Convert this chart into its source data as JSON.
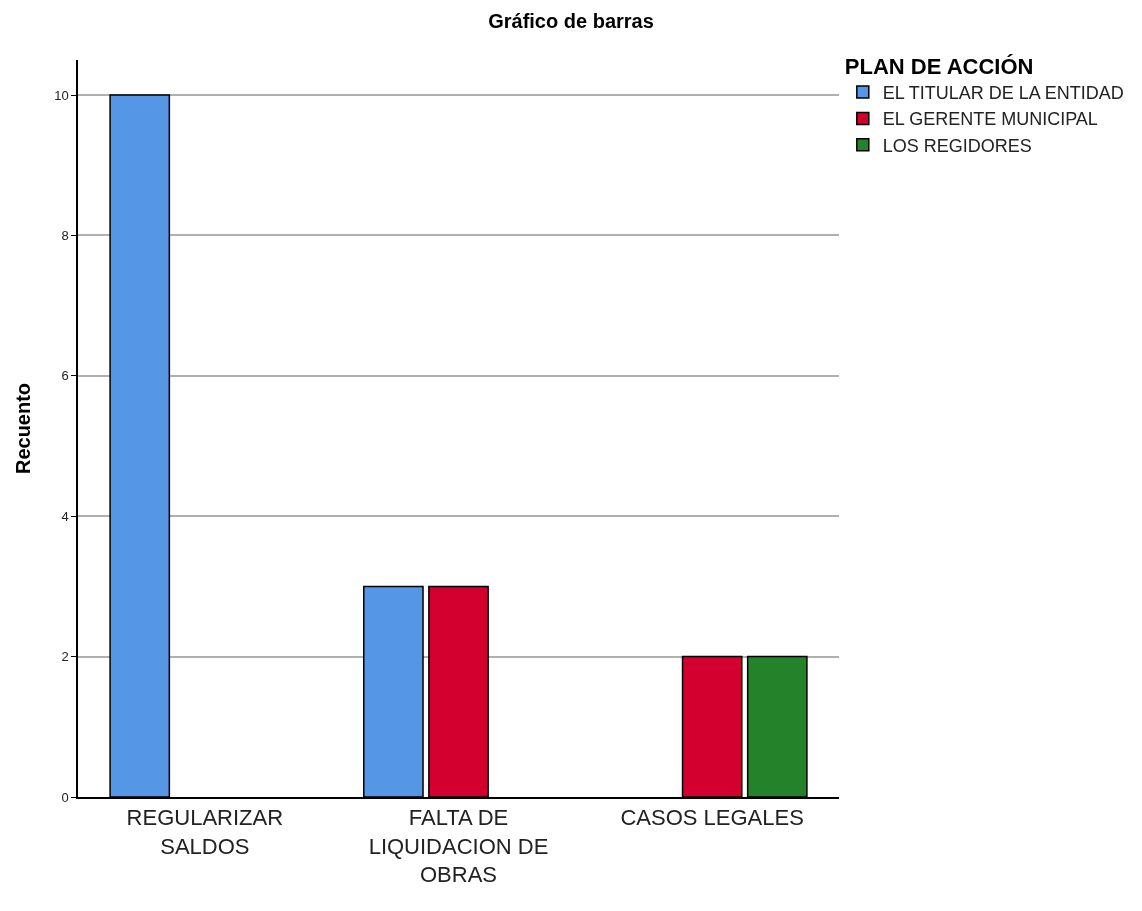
{
  "chart_data": {
    "type": "bar",
    "title": "Gráfico de barras",
    "ylabel": "Recuento",
    "legend_title": "PLAN DE ACCIÓN",
    "categories": [
      "REGULARIZAR SALDOS",
      "FALTA DE LIQUIDACION DE OBRAS",
      "CASOS LEGALES"
    ],
    "series": [
      {
        "name": "EL TITULAR DE LA ENTIDAD",
        "color": "#5596e6",
        "values": [
          10,
          3,
          null
        ]
      },
      {
        "name": "EL GERENTE MUNICIPAL",
        "color": "#d3002f",
        "values": [
          null,
          3,
          2
        ]
      },
      {
        "name": "LOS REGIDORES",
        "color": "#24832a",
        "values": [
          null,
          null,
          2
        ]
      }
    ],
    "ylim": [
      0,
      10.5
    ],
    "yticks": [
      0,
      2,
      4,
      6,
      8,
      10
    ],
    "grid": "y",
    "legend": "top right"
  }
}
